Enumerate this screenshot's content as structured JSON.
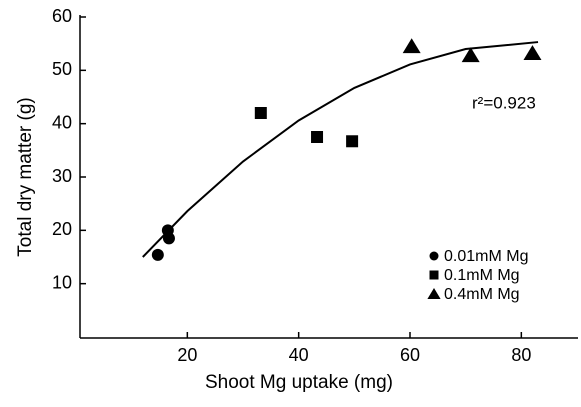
{
  "chart_data": {
    "type": "scatter",
    "xlabel": "Shoot Mg uptake (mg)",
    "ylabel": "Total dry matter (g)",
    "annotation": "r²=0.923",
    "xlim": [
      0,
      90
    ],
    "xticks": [
      20,
      40,
      60,
      80
    ],
    "ylim": [
      0,
      60
    ],
    "yticks": [
      10,
      20,
      30,
      40,
      50,
      60
    ],
    "series": [
      {
        "name": "0.01mM Mg",
        "marker": "circle",
        "color": "#000000",
        "x": [
          14.7,
          16.5,
          16.7
        ],
        "values": [
          15.4,
          20,
          18.5
        ]
      },
      {
        "name": "0.1mM Mg",
        "marker": "square",
        "color": "#000000",
        "x": [
          33.2,
          43.3,
          49.6
        ],
        "values": [
          42,
          37.5,
          36.7
        ]
      },
      {
        "name": "0.4mM Mg",
        "marker": "triangle",
        "color": "#000000",
        "x": [
          60.3,
          70.9,
          82
        ],
        "values": [
          54.5,
          52.8,
          53.2
        ]
      }
    ],
    "fit": {
      "color": "#000000",
      "x": [
        12,
        20,
        30,
        40,
        50,
        60,
        70,
        83
      ],
      "values": [
        15,
        23.6,
        32.9,
        40.6,
        46.7,
        51.1,
        54,
        55.3
      ]
    }
  }
}
